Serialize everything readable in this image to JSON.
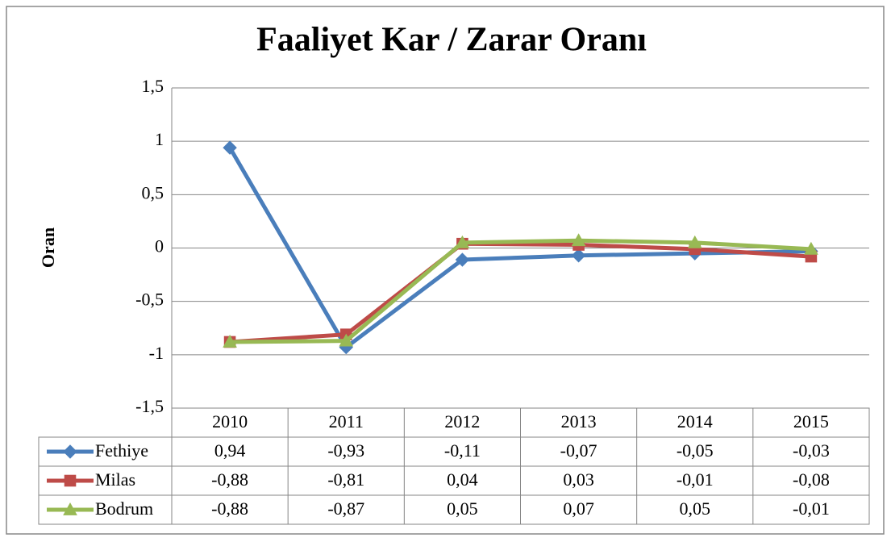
{
  "chart_data": {
    "type": "line",
    "title": "Faaliyet Kar / Zarar Oranı",
    "y_label": "Oran",
    "categories": [
      "2010",
      "2011",
      "2012",
      "2013",
      "2014",
      "2015"
    ],
    "series": [
      {
        "name": "Fethiye",
        "color": "#4a7ebb",
        "marker": "diamond",
        "values": [
          0.94,
          -0.93,
          -0.11,
          -0.07,
          -0.05,
          -0.03
        ],
        "value_labels": [
          "0,94",
          "-0,93",
          "-0,11",
          "-0,07",
          "-0,05",
          "-0,03"
        ]
      },
      {
        "name": "Milas",
        "color": "#be4b48",
        "marker": "square",
        "values": [
          -0.88,
          -0.81,
          0.04,
          0.03,
          -0.01,
          -0.08
        ],
        "value_labels": [
          "-0,88",
          "-0,81",
          "0,04",
          "0,03",
          "-0,01",
          "-0,08"
        ]
      },
      {
        "name": "Bodrum",
        "color": "#98b954",
        "marker": "triangle",
        "values": [
          -0.88,
          -0.87,
          0.05,
          0.07,
          0.05,
          -0.01
        ],
        "value_labels": [
          "-0,88",
          "-0,87",
          "0,05",
          "0,07",
          "0,05",
          "-0,01"
        ]
      }
    ],
    "ylim": [
      -1.5,
      1.5
    ],
    "yticks": [
      {
        "value": -1.5,
        "label": "-1,5"
      },
      -1,
      {
        "value": -0.5,
        "label": "-0,5"
      },
      0,
      {
        "value": 0.5,
        "label": "0,5"
      },
      1,
      {
        "value": 1.5,
        "label": "1,5"
      }
    ],
    "grid": true,
    "data_table": true
  }
}
